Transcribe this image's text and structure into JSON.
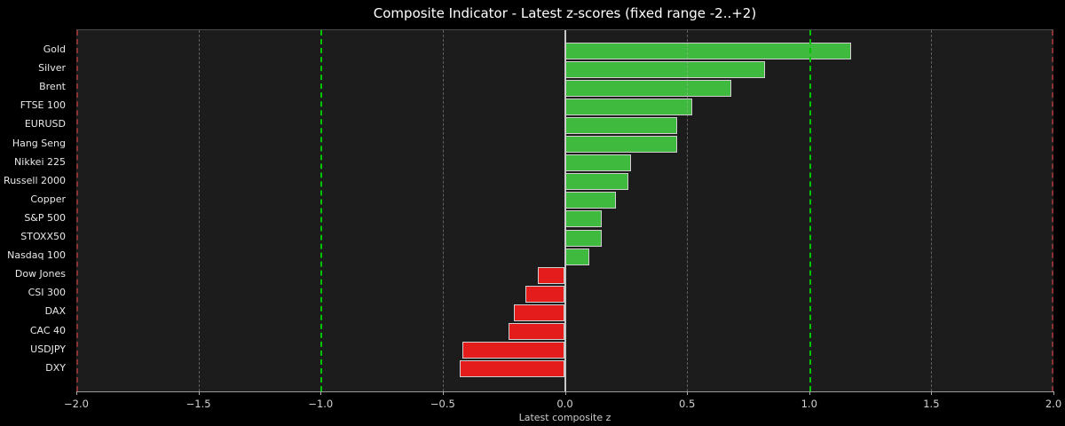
{
  "chart_data": {
    "type": "bar",
    "orientation": "horizontal",
    "title": "Composite Indicator - Latest z-scores (fixed range -2..+2)",
    "xlabel": "Latest composite z",
    "xlim": [
      -2.0,
      2.0
    ],
    "xticks": [
      {
        "value": -2.0,
        "label": "−2.0"
      },
      {
        "value": -1.5,
        "label": "−1.5"
      },
      {
        "value": -1.0,
        "label": "−1.0"
      },
      {
        "value": -0.5,
        "label": "−0.5"
      },
      {
        "value": 0.0,
        "label": "0.0"
      },
      {
        "value": 0.5,
        "label": "0.5"
      },
      {
        "value": 1.0,
        "label": "1.0"
      },
      {
        "value": 1.5,
        "label": "1.5"
      },
      {
        "value": 2.0,
        "label": "2.0"
      }
    ],
    "categories": [
      "Gold",
      "Silver",
      "Brent",
      "FTSE 100",
      "EURUSD",
      "Hang Seng",
      "Nikkei 225",
      "Russell 2000",
      "Copper",
      "S&P 500",
      "STOXX50",
      "Nasdaq 100",
      "Dow Jones",
      "CSI 300",
      "DAX",
      "CAC 40",
      "USDJPY",
      "DXY"
    ],
    "values": [
      1.17,
      0.82,
      0.68,
      0.52,
      0.46,
      0.46,
      0.27,
      0.26,
      0.21,
      0.15,
      0.15,
      0.1,
      -0.11,
      -0.16,
      -0.21,
      -0.23,
      -0.42,
      -0.43
    ],
    "grid": {
      "minor_dashed_lines": [
        -1.5,
        -0.5,
        0.5,
        1.5
      ],
      "green_dashed_lines": [
        -1.0,
        1.0
      ],
      "red_dashed_lines": [
        -2.0,
        2.0
      ],
      "zero_line": 0.0
    },
    "legend": "none",
    "colors": {
      "positive_bar": "#3fba3f",
      "negative_bar": "#e41c1c",
      "bar_edge": "#cfcfcf",
      "green_threshold_line": "#00c400",
      "red_threshold_line": "#8b3232",
      "grid_line": "#5a5a5a",
      "zero_line": "#c8c8c8",
      "plot_background": "#1c1c1c",
      "figure_background": "#000000",
      "text": "#e8e8e8"
    }
  }
}
